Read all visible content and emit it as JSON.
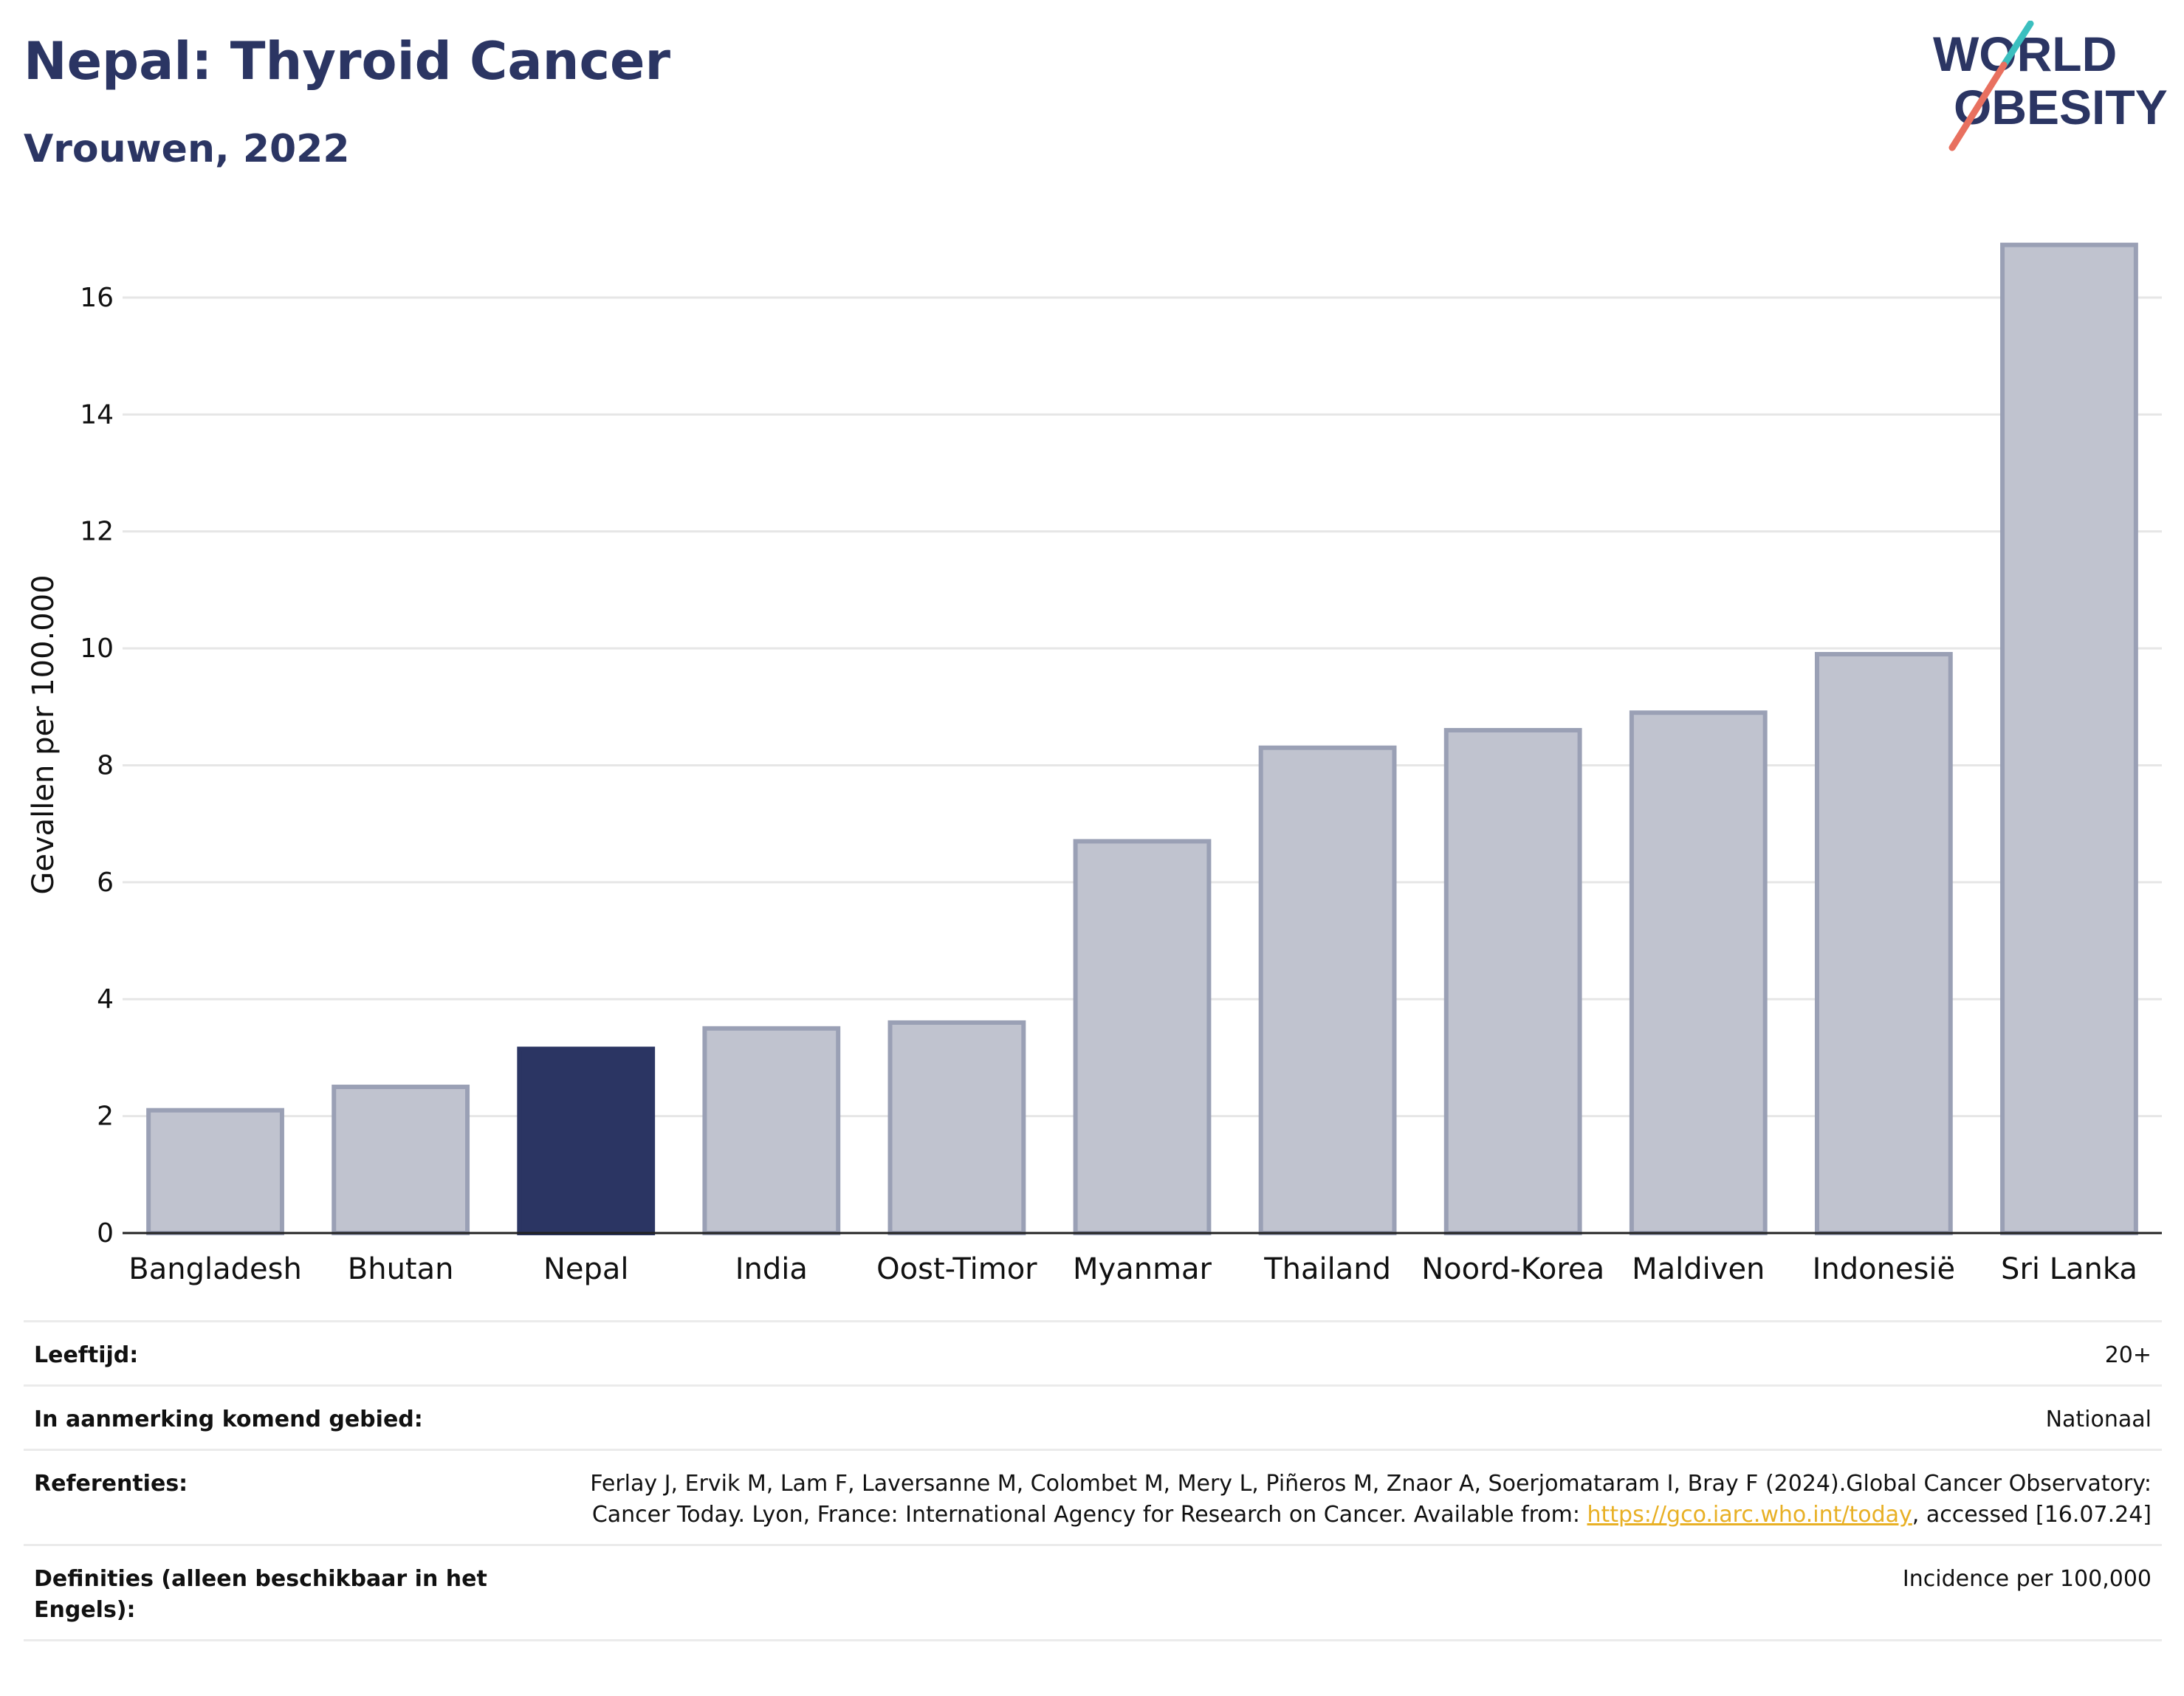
{
  "header": {
    "title": "Nepal: Thyroid Cancer",
    "subtitle": "Vrouwen, 2022",
    "logo_line1": "WORLD",
    "logo_line2": "OBESITY"
  },
  "colors": {
    "highlight": "#2b3563",
    "bar": "#c0c3cf",
    "bar_outline": "#9aa0b5",
    "title": "#2b3563",
    "logo_teal": "#3bbfbf",
    "logo_coral": "#e8705f",
    "link": "#e8b025"
  },
  "chart_data": {
    "type": "bar",
    "ylabel": "Gevallen per 100.000",
    "xlabel": "",
    "categories": [
      "Bangladesh",
      "Bhutan",
      "Nepal",
      "India",
      "Oost-Timor",
      "Myanmar",
      "Thailand",
      "Noord-Korea",
      "Maldiven",
      "Indonesië",
      "Sri Lanka"
    ],
    "values": [
      2.1,
      2.5,
      3.15,
      3.5,
      3.6,
      6.7,
      8.3,
      8.6,
      8.9,
      9.9,
      16.9
    ],
    "highlight": "Nepal",
    "ylim": [
      0,
      17.3
    ],
    "yticks": [
      0,
      2,
      4,
      6,
      8,
      10,
      12,
      14,
      16
    ],
    "grid": true
  },
  "meta": {
    "rows": [
      {
        "label": "Leeftijd:",
        "value": "20+"
      },
      {
        "label": "In aanmerking komend gebied:",
        "value": "Nationaal"
      },
      {
        "label": "Definities (alleen beschikbaar in het Engels):",
        "value": "Incidence per 100,000"
      }
    ],
    "references": {
      "label": "Referenties:",
      "text_before": "Ferlay J, Ervik M, Lam F, Laversanne M, Colombet M, Mery L, Piñeros M, Znaor A, Soerjomataram I, Bray F (2024).Global Cancer Observatory: Cancer Today. Lyon, France: International Agency for Research on Cancer. Available from: ",
      "link": "https://gco.iarc.who.int/today",
      "text_after": ", accessed [16.07.24]"
    }
  }
}
